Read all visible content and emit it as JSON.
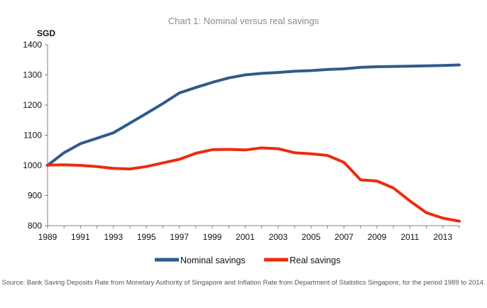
{
  "chart_data": {
    "type": "line",
    "title": "Chart 1: Nominal versus real savings",
    "ylabel": "SGD",
    "xlabel": "",
    "ylim": [
      800,
      1400
    ],
    "xlim": [
      1989,
      2014
    ],
    "yticks": [
      "1400",
      "1300",
      "1200",
      "1100",
      "1000",
      "900",
      "800"
    ],
    "ytick_values": [
      1400,
      1300,
      1200,
      1100,
      1000,
      900,
      800
    ],
    "xticks": [
      "1989",
      "1991",
      "1993",
      "1995",
      "1997",
      "1999",
      "2001",
      "2003",
      "2005",
      "2007",
      "2009",
      "2011",
      "2013"
    ],
    "xtick_values": [
      1989,
      1991,
      1993,
      1995,
      1997,
      1999,
      2001,
      2003,
      2005,
      2007,
      2009,
      2011,
      2013
    ],
    "grid": false,
    "legend_position": "bottom",
    "x": [
      1989,
      1990,
      1991,
      1992,
      1993,
      1994,
      1995,
      1996,
      1997,
      1998,
      1999,
      2000,
      2001,
      2002,
      2003,
      2004,
      2005,
      2006,
      2007,
      2008,
      2009,
      2010,
      2011,
      2012,
      2013,
      2014
    ],
    "series": [
      {
        "name": "Nominal savings",
        "color": "#2e5b8c",
        "values": [
          1000,
          1042,
          1072,
          1090,
          1108,
          1140,
          1172,
          1205,
          1240,
          1258,
          1275,
          1290,
          1300,
          1305,
          1308,
          1312,
          1314,
          1318,
          1320,
          1325,
          1327,
          1328,
          1329,
          1330,
          1331,
          1333
        ]
      },
      {
        "name": "Real savings",
        "color": "#ee2b0f",
        "values": [
          1001,
          1002,
          1000,
          996,
          990,
          988,
          996,
          1008,
          1020,
          1040,
          1052,
          1053,
          1051,
          1058,
          1055,
          1042,
          1038,
          1033,
          1010,
          952,
          948,
          925,
          882,
          843,
          825,
          815
        ]
      }
    ],
    "source": "Source: Bank Saving Deposits Rate from Monetary Authority of Singapore and Inflation Rate from Department of Statistics Singapore, for the period 1989 to 2014."
  }
}
